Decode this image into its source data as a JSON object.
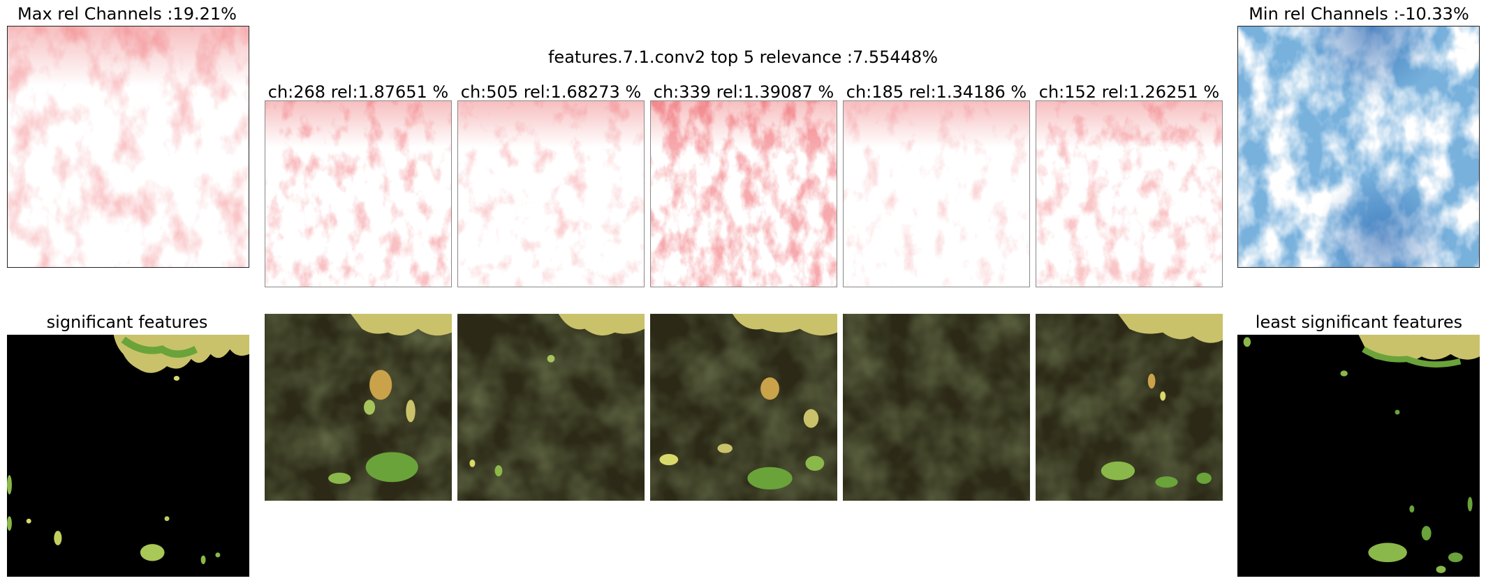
{
  "figure": {
    "suptitle": "features.7.1.conv2 top 5 relevance :7.55448%",
    "max_title": "Max rel Channels :19.21%",
    "min_title": "Min rel Channels :-10.33%",
    "sig_title": "significant features",
    "least_title": "least significant features",
    "channels": [
      {
        "title": "ch:268 rel:1.87651 %",
        "heat_intensity": 0.55
      },
      {
        "title": "ch:505 rel:1.68273 %",
        "heat_intensity": 0.35
      },
      {
        "title": "ch:339 rel:1.39087 %",
        "heat_intensity": 0.75
      },
      {
        "title": "ch:185 rel:1.34186 %",
        "heat_intensity": 0.3
      },
      {
        "title": "ch:152 rel:1.26251 %",
        "heat_intensity": 0.45
      }
    ]
  },
  "colors": {
    "positive_heat": "#e8464a",
    "negative_heat": "#1f5fae",
    "terrain_dark": "#2c2a17",
    "vegetation": "#6aa33a",
    "highlight": "#e6df6a",
    "mask": "#000000"
  }
}
